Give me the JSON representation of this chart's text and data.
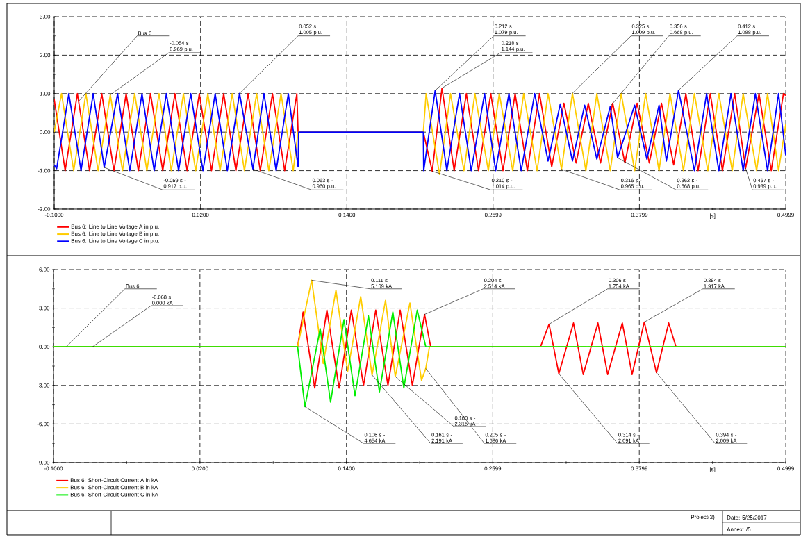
{
  "chart_data": [
    {
      "type": "line",
      "marker": "none",
      "line_style": "solid",
      "grid": true,
      "legend": "bottom left",
      "xlabel": "[s]",
      "xlim": [
        -0.1,
        0.4999
      ],
      "ylim": [
        -2,
        3
      ],
      "xticks": [
        {
          "value": -0.1,
          "label": "-0.1000"
        },
        {
          "value": -0.04,
          "label": null
        },
        {
          "value": 0.02,
          "label": "0.0200"
        },
        {
          "value": 0.08,
          "label": null
        },
        {
          "value": 0.14,
          "label": "0.1400"
        },
        {
          "value": 0.2,
          "label": null
        },
        {
          "value": 0.2599,
          "label": "0.2599"
        },
        {
          "value": 0.32,
          "label": null
        },
        {
          "value": 0.3799,
          "label": "0.3799"
        },
        {
          "value": 0.4399,
          "label": null
        },
        {
          "value": 0.4999,
          "label": "0.4999"
        }
      ],
      "yticks": [
        {
          "value": -2,
          "label": "-2.00"
        },
        {
          "value": -1.5,
          "label": null
        },
        {
          "value": -1,
          "label": "-1.00"
        },
        {
          "value": -0.5,
          "label": null
        },
        {
          "value": 0,
          "label": "0.00"
        },
        {
          "value": 0.5,
          "label": null
        },
        {
          "value": 1,
          "label": "1.00"
        },
        {
          "value": 1.5,
          "label": null
        },
        {
          "value": 2,
          "label": "2.00"
        },
        {
          "value": 2.5,
          "label": null
        },
        {
          "value": 3,
          "label": "3.00"
        }
      ],
      "series": [
        {
          "name": "Bus 6: Line to Line Voltage A in p.u.",
          "color": "#ff0000",
          "x": [
            -0.1,
            -0.091,
            -0.081,
            -0.071,
            -0.061,
            -0.051,
            -0.041,
            -0.031,
            -0.021,
            -0.011,
            -0.001,
            0.009,
            0.019,
            0.029,
            0.039,
            0.049,
            0.059,
            0.069,
            0.079,
            0.089,
            0.099,
            0.1,
            0.2027,
            0.21,
            0.218,
            0.228,
            0.238,
            0.248,
            0.258,
            0.268,
            0.278,
            0.288,
            0.298,
            0.308,
            0.318,
            0.328,
            0.338,
            0.348,
            0.358,
            0.368,
            0.378,
            0.388,
            0.398,
            0.408,
            0.418,
            0.428,
            0.438,
            0.448,
            0.458,
            0.467,
            0.478,
            0.488,
            0.498,
            0.4999
          ],
          "values": [
            0.85,
            -1,
            1,
            -1,
            1,
            -1,
            1,
            -1,
            1,
            -1,
            1,
            -1,
            1,
            -1,
            1,
            -1,
            1,
            -1,
            1,
            -1,
            1,
            0,
            0,
            -1.014,
            1.144,
            -1,
            1,
            -1,
            1,
            -1,
            1,
            -1,
            1,
            -0.9,
            0.75,
            -0.8,
            0.75,
            -0.8,
            0.75,
            -0.8,
            0.75,
            -0.8,
            0.75,
            -0.85,
            1,
            -1,
            1,
            -1,
            1,
            -0.939,
            1,
            -1,
            1,
            0.95
          ]
        },
        {
          "name": "Bus 6: Line to Line Voltage B in p.u.",
          "color": "#ffcc00",
          "x": [
            -0.1,
            -0.094,
            -0.084,
            -0.074,
            -0.064,
            -0.054,
            -0.044,
            -0.034,
            -0.024,
            -0.014,
            -0.004,
            0.006,
            0.016,
            0.026,
            0.036,
            0.046,
            0.056,
            0.066,
            0.076,
            0.086,
            0.096,
            0.1,
            0.2027,
            0.205,
            0.216,
            0.225,
            0.236,
            0.245,
            0.256,
            0.265,
            0.276,
            0.285,
            0.296,
            0.305,
            0.316,
            0.325,
            0.336,
            0.345,
            0.356,
            0.365,
            0.376,
            0.385,
            0.396,
            0.405,
            0.416,
            0.425,
            0.436,
            0.445,
            0.456,
            0.465,
            0.476,
            0.485,
            0.494,
            0.4999
          ],
          "values": [
            0,
            1,
            -1,
            1,
            -1,
            0.969,
            -1,
            1,
            -1,
            1,
            -1,
            1,
            -1,
            1,
            -1,
            1,
            -1,
            1,
            -1,
            1,
            -1,
            0,
            0,
            1,
            -1.1,
            1,
            -1,
            1,
            -1,
            1,
            -1,
            1,
            -1,
            1,
            -0.965,
            1.009,
            -1,
            1,
            -1,
            1,
            -1,
            1,
            -1,
            1,
            -1,
            1,
            -1,
            1,
            -1,
            1,
            -1,
            1,
            -1,
            0.2
          ]
        },
        {
          "name": "Bus 6: Line to Line Voltage C in p.u.",
          "color": "#0000ff",
          "x": [
            -0.1,
            -0.098,
            -0.088,
            -0.078,
            -0.068,
            -0.059,
            -0.048,
            -0.038,
            -0.028,
            -0.018,
            -0.008,
            0.002,
            0.012,
            0.022,
            0.032,
            0.042,
            0.052,
            0.063,
            0.072,
            0.082,
            0.092,
            0.1,
            0.1005,
            0.2027,
            0.203,
            0.2124,
            0.222,
            0.2324,
            0.242,
            0.2529,
            0.262,
            0.2729,
            0.283,
            0.294,
            0.305,
            0.315,
            0.325,
            0.335,
            0.345,
            0.356,
            0.362,
            0.376,
            0.386,
            0.396,
            0.402,
            0.412,
            0.425,
            0.435,
            0.445,
            0.455,
            0.465,
            0.475,
            0.485,
            0.494,
            0.4999
          ],
          "values": [
            -0.85,
            -0.95,
            1,
            -1,
            1,
            -0.917,
            1,
            -1,
            1,
            -1,
            1,
            -1,
            1,
            -1,
            1,
            -1,
            1.005,
            -0.96,
            1,
            -1,
            1,
            -0.9,
            0,
            0,
            -1,
            1.079,
            -1,
            1,
            -1,
            1,
            -1,
            1,
            -1,
            1,
            -0.75,
            0.73,
            -0.75,
            0.7,
            -0.7,
            0.668,
            -0.668,
            0.7,
            -0.7,
            0.7,
            -0.75,
            1.088,
            -1,
            1,
            -1,
            1,
            -1,
            1,
            -1,
            1,
            -0.6
          ]
        }
      ],
      "annotations": [
        {
          "text": "Bus 6",
          "x": -0.08,
          "y": 0.8
        },
        {
          "text": "-0.054 s 0.969 p.u.",
          "x": -0.054,
          "y": 0.969
        },
        {
          "text": "0.052 s 1.005 p.u.",
          "x": 0.052,
          "y": 1.005
        },
        {
          "text": "0.212 s 1.079 p.u.",
          "x": 0.2124,
          "y": 1.079
        },
        {
          "text": "0.218 s 1.144 p.u.",
          "x": 0.218,
          "y": 1.144
        },
        {
          "text": "0.325 s 1.009 p.u.",
          "x": 0.325,
          "y": 1.009
        },
        {
          "text": "0.356 s 0.668 p.u.",
          "x": 0.356,
          "y": 0.668
        },
        {
          "text": "0.412 s 1.088 p.u.",
          "x": 0.412,
          "y": 1.088
        },
        {
          "text": "-0.059 s -0.917 p.u.",
          "x": -0.059,
          "y": -0.917
        },
        {
          "text": "0.063 s -0.960 p.u.",
          "x": 0.063,
          "y": -0.96
        },
        {
          "text": "0.210 s -1.014 p.u.",
          "x": 0.21,
          "y": -1.014
        },
        {
          "text": "0.316 s -0.965 p.u.",
          "x": 0.316,
          "y": -0.965
        },
        {
          "text": "0.362 s -0.668 p.u.",
          "x": 0.362,
          "y": -0.668
        },
        {
          "text": "0.467 s -0.939 p.u.",
          "x": 0.467,
          "y": -0.939
        }
      ]
    },
    {
      "type": "line",
      "marker": "none",
      "line_style": "solid",
      "grid": true,
      "legend": "bottom left",
      "xlabel": "[s]",
      "xlim": [
        -0.1,
        0.4999
      ],
      "ylim": [
        -9,
        6
      ],
      "xticks": [
        {
          "value": -0.1,
          "label": "-0.1000"
        },
        {
          "value": -0.04,
          "label": null
        },
        {
          "value": 0.02,
          "label": "0.0200"
        },
        {
          "value": 0.08,
          "label": null
        },
        {
          "value": 0.14,
          "label": "0.1400"
        },
        {
          "value": 0.2,
          "label": null
        },
        {
          "value": 0.2599,
          "label": "0.2599"
        },
        {
          "value": 0.32,
          "label": null
        },
        {
          "value": 0.3799,
          "label": "0.3799"
        },
        {
          "value": 0.4399,
          "label": null
        },
        {
          "value": 0.4999,
          "label": "0.4999"
        }
      ],
      "yticks": [
        {
          "value": -9,
          "label": "-9.00"
        },
        {
          "value": -7.5,
          "label": null
        },
        {
          "value": -6,
          "label": "-6.00"
        },
        {
          "value": -4.5,
          "label": null
        },
        {
          "value": -3,
          "label": "-3.00"
        },
        {
          "value": -1.5,
          "label": null
        },
        {
          "value": 0,
          "label": "0.00"
        },
        {
          "value": 1.5,
          "label": null
        },
        {
          "value": 3,
          "label": "3.00"
        },
        {
          "value": 4.5,
          "label": null
        },
        {
          "value": 6,
          "label": "6.00"
        }
      ],
      "series": [
        {
          "name": "Bus 6: Short-Circuit Current A in kA",
          "color": "#ff0000",
          "x": [
            -0.1,
            0.1,
            0.1045,
            0.114,
            0.124,
            0.134,
            0.144,
            0.154,
            0.164,
            0.174,
            0.184,
            0.194,
            0.204,
            0.209,
            0.299,
            0.306,
            0.314,
            0.326,
            0.334,
            0.346,
            0.354,
            0.366,
            0.374,
            0.384,
            0.394,
            0.404,
            0.41,
            0.4999
          ],
          "values": [
            0,
            0,
            2.7,
            -3.2,
            2.85,
            -3.2,
            2.85,
            -3.0,
            2.85,
            -3.0,
            2.85,
            -3.0,
            2.514,
            0,
            0,
            1.754,
            -2.091,
            1.85,
            -2.15,
            1.85,
            -2.15,
            1.85,
            -2.15,
            1.917,
            -2.009,
            1.85,
            0,
            0
          ]
        },
        {
          "name": "Bus 6: Short-Circuit Current B in kA",
          "color": "#ffcc00",
          "x": [
            -0.1,
            0.1,
            0.1115,
            0.121,
            0.1314,
            0.141,
            0.1517,
            0.161,
            0.172,
            0.18,
            0.192,
            0.2015,
            0.205,
            0.208,
            0.4999
          ],
          "values": [
            0,
            0,
            5.169,
            -1.3,
            4.4,
            -1.9,
            3.9,
            -2.191,
            3.6,
            -2.315,
            3.4,
            -2.6,
            -1.686,
            0,
            0
          ]
        },
        {
          "name": "Bus 6: Short-Circuit Current C in kA",
          "color": "#00ee00",
          "x": [
            -0.1,
            0.1,
            0.106,
            0.1185,
            0.127,
            0.138,
            0.147,
            0.158,
            0.167,
            0.178,
            0.187,
            0.198,
            0.205,
            0.4999
          ],
          "values": [
            0,
            0,
            -4.654,
            1.4,
            -4.3,
            2.1,
            -3.8,
            2.4,
            -3.5,
            2.7,
            -3.2,
            2.85,
            0,
            0
          ]
        }
      ],
      "annotations": [
        {
          "text": "Bus 6",
          "x": -0.0895,
          "y": 0
        },
        {
          "text": "-0.068 s 0.000 kA",
          "x": -0.068,
          "y": 0
        },
        {
          "text": "0.111 s 5.169 kA",
          "x": 0.1115,
          "y": 5.169
        },
        {
          "text": "0.204 s 2.514 kA",
          "x": 0.204,
          "y": 2.514
        },
        {
          "text": "0.306 s 1.754 kA",
          "x": 0.306,
          "y": 1.754
        },
        {
          "text": "0.384 s 1.917 kA",
          "x": 0.384,
          "y": 1.917
        },
        {
          "text": "0.106 s -4.654 kA",
          "x": 0.106,
          "y": -4.654
        },
        {
          "text": "0.161 s -2.191 kA",
          "x": 0.161,
          "y": -2.191
        },
        {
          "text": "0.180 s -2.315 kA",
          "x": 0.18,
          "y": -2.315
        },
        {
          "text": "0.205 s -1.686 kA",
          "x": 0.205,
          "y": -1.686
        },
        {
          "text": "0.314 s -2.091 kA",
          "x": 0.314,
          "y": -2.091
        },
        {
          "text": "0.394 s -2.009 kA",
          "x": 0.394,
          "y": -2.009
        },
        "Project(3)",
        "Date: 5/25/2017",
        "Annex: /5"
      ]
    }
  ]
}
